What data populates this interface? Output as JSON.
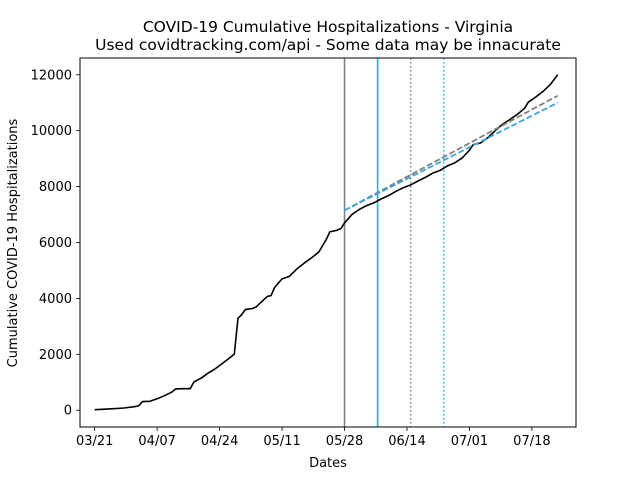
{
  "chart_data": {
    "type": "line",
    "title": "COVID-19 Cumulative Hospitalizations - Virginia",
    "subtitle": "Used covidtracking.com/api - Some data may be innacurate",
    "xlabel": "Dates",
    "ylabel": "Cumulative COVID-19 Hospitalizations",
    "xlim": [
      "2020-03-17",
      "2020-07-30"
    ],
    "ylim": [
      -600,
      12600
    ],
    "x_ticks": [
      {
        "date": "2020-03-21",
        "label": "03/21"
      },
      {
        "date": "2020-04-07",
        "label": "04/07"
      },
      {
        "date": "2020-04-24",
        "label": "04/24"
      },
      {
        "date": "2020-05-11",
        "label": "05/11"
      },
      {
        "date": "2020-05-28",
        "label": "05/28"
      },
      {
        "date": "2020-06-14",
        "label": "06/14"
      },
      {
        "date": "2020-07-01",
        "label": "07/01"
      },
      {
        "date": "2020-07-18",
        "label": "07/18"
      }
    ],
    "y_ticks": [
      0,
      2000,
      4000,
      6000,
      8000,
      10000,
      12000
    ],
    "grid": false,
    "colors": {
      "actual": "#000000",
      "gray": "#808080",
      "cyan": "#17becf",
      "blue_dashed": "#3ba5db"
    },
    "series": [
      {
        "style": "solid",
        "color": "#000000",
        "points": [
          [
            "2020-03-21",
            20
          ],
          [
            "2020-03-25",
            45
          ],
          [
            "2020-03-29",
            80
          ],
          [
            "2020-04-01",
            130
          ],
          [
            "2020-04-02",
            160
          ],
          [
            "2020-04-03",
            310
          ],
          [
            "2020-04-05",
            320
          ],
          [
            "2020-04-07",
            410
          ],
          [
            "2020-04-09",
            520
          ],
          [
            "2020-04-11",
            650
          ],
          [
            "2020-04-12",
            760
          ],
          [
            "2020-04-14",
            770
          ],
          [
            "2020-04-16",
            770
          ],
          [
            "2020-04-17",
            1010
          ],
          [
            "2020-04-19",
            1150
          ],
          [
            "2020-04-21",
            1340
          ],
          [
            "2020-04-23",
            1500
          ],
          [
            "2020-04-25",
            1700
          ],
          [
            "2020-04-27",
            1900
          ],
          [
            "2020-04-28",
            2010
          ],
          [
            "2020-04-29",
            3290
          ],
          [
            "2020-04-30",
            3420
          ],
          [
            "2020-05-01",
            3600
          ],
          [
            "2020-05-03",
            3640
          ],
          [
            "2020-05-04",
            3700
          ],
          [
            "2020-05-05",
            3830
          ],
          [
            "2020-05-07",
            4070
          ],
          [
            "2020-05-08",
            4100
          ],
          [
            "2020-05-09",
            4400
          ],
          [
            "2020-05-11",
            4700
          ],
          [
            "2020-05-13",
            4790
          ],
          [
            "2020-05-15",
            5050
          ],
          [
            "2020-05-17",
            5260
          ],
          [
            "2020-05-19",
            5450
          ],
          [
            "2020-05-21",
            5660
          ],
          [
            "2020-05-23",
            6100
          ],
          [
            "2020-05-24",
            6380
          ],
          [
            "2020-05-26",
            6440
          ],
          [
            "2020-05-27",
            6500
          ],
          [
            "2020-05-28",
            6700
          ],
          [
            "2020-05-30",
            7000
          ],
          [
            "2020-06-01",
            7180
          ],
          [
            "2020-06-03",
            7320
          ],
          [
            "2020-06-05",
            7420
          ],
          [
            "2020-06-07",
            7560
          ],
          [
            "2020-06-09",
            7680
          ],
          [
            "2020-06-11",
            7830
          ],
          [
            "2020-06-13",
            7960
          ],
          [
            "2020-06-15",
            8060
          ],
          [
            "2020-06-17",
            8200
          ],
          [
            "2020-06-19",
            8330
          ],
          [
            "2020-06-21",
            8480
          ],
          [
            "2020-06-23",
            8580
          ],
          [
            "2020-06-25",
            8740
          ],
          [
            "2020-06-27",
            8850
          ],
          [
            "2020-06-29",
            9020
          ],
          [
            "2020-07-01",
            9300
          ],
          [
            "2020-07-02",
            9500
          ],
          [
            "2020-07-04",
            9560
          ],
          [
            "2020-07-06",
            9750
          ],
          [
            "2020-07-08",
            10000
          ],
          [
            "2020-07-10",
            10230
          ],
          [
            "2020-07-12",
            10400
          ],
          [
            "2020-07-14",
            10580
          ],
          [
            "2020-07-16",
            10800
          ],
          [
            "2020-07-17",
            11020
          ],
          [
            "2020-07-19",
            11200
          ],
          [
            "2020-07-21",
            11400
          ],
          [
            "2020-07-23",
            11650
          ],
          [
            "2020-07-25",
            12000
          ]
        ]
      },
      {
        "style": "dashed",
        "color": "#808080",
        "points": [
          [
            "2020-05-28",
            7150
          ],
          [
            "2020-07-25",
            11250
          ]
        ]
      },
      {
        "style": "dashed",
        "color": "#3ba5db",
        "points": [
          [
            "2020-05-28",
            7150
          ],
          [
            "2020-07-25",
            11000
          ]
        ]
      }
    ],
    "vertical_lines": [
      {
        "date": "2020-05-28",
        "color": "#808080",
        "style": "solid"
      },
      {
        "date": "2020-06-06",
        "color": "#17becf",
        "style": "solid"
      },
      {
        "date": "2020-06-15",
        "color": "#808080",
        "style": "dotted"
      },
      {
        "date": "2020-06-24",
        "color": "#17becf",
        "style": "dotted"
      }
    ]
  }
}
